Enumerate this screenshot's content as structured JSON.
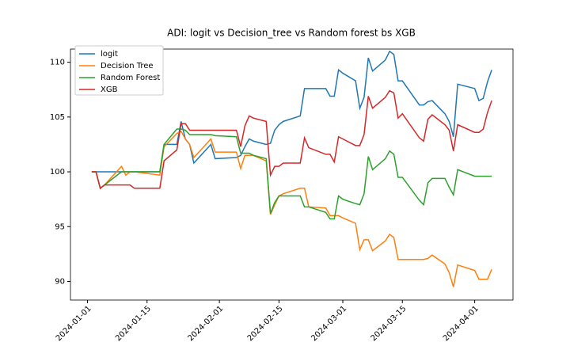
{
  "chart_data": {
    "type": "line",
    "title": "ADI: logit vs Decision_tree vs Random forest bs XGB",
    "x": [
      "2024-01-02",
      "2024-01-03",
      "2024-01-04",
      "2024-01-05",
      "2024-01-09",
      "2024-01-10",
      "2024-01-11",
      "2024-01-12",
      "2024-01-18",
      "2024-01-19",
      "2024-01-22",
      "2024-01-23",
      "2024-01-24",
      "2024-01-25",
      "2024-01-26",
      "2024-01-30",
      "2024-01-31",
      "2024-02-05",
      "2024-02-06",
      "2024-02-07",
      "2024-02-08",
      "2024-02-09",
      "2024-02-12",
      "2024-02-13",
      "2024-02-14",
      "2024-02-15",
      "2024-02-16",
      "2024-02-20",
      "2024-02-21",
      "2024-02-22",
      "2024-02-26",
      "2024-02-27",
      "2024-02-28",
      "2024-02-29",
      "2024-03-01",
      "2024-03-04",
      "2024-03-05",
      "2024-03-06",
      "2024-03-07",
      "2024-03-08",
      "2024-03-11",
      "2024-03-12",
      "2024-03-13",
      "2024-03-14",
      "2024-03-15",
      "2024-03-19",
      "2024-03-20",
      "2024-03-21",
      "2024-03-22",
      "2024-03-25",
      "2024-03-26",
      "2024-03-27",
      "2024-03-28",
      "2024-04-01",
      "2024-04-02",
      "2024-04-03",
      "2024-04-04",
      "2024-04-05"
    ],
    "series": [
      {
        "name": "logit",
        "color": "#1f77b4",
        "values": [
          100,
          100,
          100,
          100,
          100,
          100,
          100,
          100,
          100,
          102.5,
          102.5,
          104.6,
          103,
          102.5,
          100.8,
          102.5,
          101.2,
          101.3,
          101.5,
          102.3,
          103,
          102.8,
          102.5,
          102.6,
          103.8,
          104.3,
          104.6,
          105.1,
          107.6,
          107.6,
          107.6,
          106.9,
          106.9,
          109.3,
          109,
          108.3,
          105.8,
          106.8,
          110.4,
          109.2,
          110.2,
          111,
          110.7,
          108.3,
          108.3,
          106.1,
          106.1,
          106.4,
          106.5,
          105.3,
          104.6,
          103.2,
          108,
          107.6,
          106.5,
          106.7,
          108.2,
          109.3
        ]
      },
      {
        "name": "Decision Tree",
        "color": "#ff7f0e",
        "values": [
          100,
          100,
          98.5,
          98.8,
          100.5,
          99.7,
          100,
          100,
          99.7,
          102.3,
          103.5,
          103.7,
          103,
          102.5,
          101.3,
          103,
          101.8,
          101.8,
          100.3,
          101.5,
          101.5,
          101.5,
          101,
          96.1,
          97,
          97.8,
          98,
          98.5,
          98.5,
          96.8,
          96.7,
          96,
          96,
          96,
          95.8,
          95.3,
          92.9,
          93.8,
          93.8,
          92.8,
          93.7,
          94.3,
          94,
          92,
          92,
          92,
          92,
          92.1,
          92.4,
          91.6,
          90.8,
          89.5,
          91.5,
          91,
          90.2,
          90.2,
          90.2,
          91.1
        ]
      },
      {
        "name": "Random Forest",
        "color": "#2ca02c",
        "values": [
          100,
          100,
          98.5,
          98.8,
          100,
          100,
          100,
          100,
          100,
          102.5,
          103.9,
          103.9,
          103.8,
          103.4,
          103.4,
          103.4,
          103.3,
          103.2,
          101.7,
          101.7,
          101.7,
          101.5,
          101.2,
          96.2,
          97.2,
          97.8,
          97.8,
          97.8,
          96.8,
          96.8,
          96.3,
          95.7,
          95.7,
          97.8,
          97.5,
          97.1,
          97,
          98,
          101.4,
          100.2,
          101.2,
          101.9,
          101.6,
          99.5,
          99.5,
          97.4,
          97,
          99,
          99.4,
          99.4,
          98.6,
          97.9,
          100.2,
          99.6,
          99.6,
          99.6,
          99.6,
          99.6
        ]
      },
      {
        "name": "XGB",
        "color": "#d62728",
        "values": [
          100,
          100,
          98.5,
          98.8,
          98.8,
          98.8,
          98.8,
          98.5,
          98.5,
          101,
          102,
          104.4,
          104.4,
          103.8,
          103.8,
          103.8,
          103.8,
          103.8,
          102.3,
          104.2,
          105.1,
          104.9,
          104.6,
          99.7,
          100.5,
          100.5,
          100.8,
          100.8,
          103.1,
          102.2,
          101.6,
          101.6,
          100.9,
          103.2,
          103,
          102.4,
          102.4,
          103.4,
          106.9,
          105.8,
          106.8,
          107.4,
          107.2,
          104.9,
          105.3,
          103.1,
          102.8,
          104.8,
          105.2,
          104.3,
          103.8,
          101.9,
          104.3,
          103.6,
          103.6,
          103.9,
          105.4,
          106.5
        ]
      }
    ],
    "xlim": [
      "2023-12-28",
      "2024-04-10"
    ],
    "xticks": [
      "2024-01-01",
      "2024-01-15",
      "2024-02-01",
      "2024-02-15",
      "2024-03-01",
      "2024-03-15",
      "2024-04-01"
    ],
    "ylim": [
      88.3,
      111.2
    ],
    "yticks": [
      90,
      95,
      100,
      105,
      110
    ],
    "legend": "upper left"
  }
}
